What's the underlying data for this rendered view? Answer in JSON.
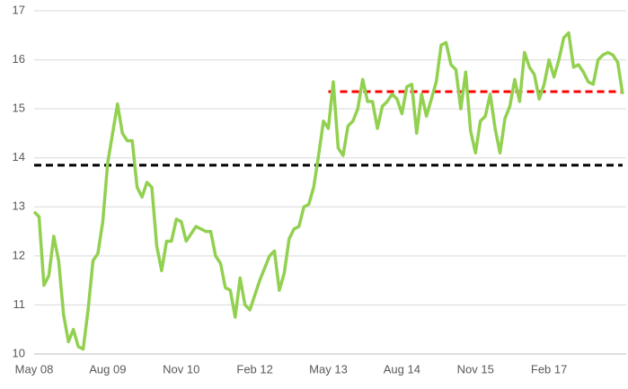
{
  "chart_data": {
    "type": "line",
    "categories": [
      "May 08",
      null,
      null,
      null,
      null,
      null,
      null,
      null,
      null,
      null,
      null,
      null,
      null,
      null,
      null,
      "Aug 09",
      null,
      null,
      null,
      null,
      null,
      null,
      null,
      null,
      null,
      null,
      null,
      null,
      null,
      null,
      "Nov 10",
      null,
      null,
      null,
      null,
      null,
      null,
      null,
      null,
      null,
      null,
      null,
      null,
      null,
      null,
      "Feb 12",
      null,
      null,
      null,
      null,
      null,
      null,
      null,
      null,
      null,
      null,
      null,
      null,
      null,
      null,
      "May 13",
      null,
      null,
      null,
      null,
      null,
      null,
      null,
      null,
      null,
      null,
      null,
      null,
      null,
      null,
      "Aug 14",
      null,
      null,
      null,
      null,
      null,
      null,
      null,
      null,
      null,
      null,
      null,
      null,
      null,
      null,
      "Nov 15",
      null,
      null,
      null,
      null,
      null,
      null,
      null,
      null,
      null,
      null,
      null,
      null,
      null,
      null,
      "Feb 17",
      null,
      null,
      null,
      null,
      null,
      null,
      null,
      null,
      null,
      null,
      null,
      null,
      null,
      null,
      null
    ],
    "values": [
      12.9,
      12.8,
      11.4,
      11.6,
      12.4,
      11.9,
      10.8,
      10.25,
      10.5,
      10.15,
      10.1,
      10.9,
      11.9,
      12.05,
      12.7,
      13.9,
      14.5,
      15.1,
      14.5,
      14.35,
      14.35,
      13.4,
      13.2,
      13.5,
      13.4,
      12.2,
      11.7,
      12.3,
      12.3,
      12.75,
      12.7,
      12.3,
      12.45,
      12.6,
      12.55,
      12.5,
      12.5,
      12.0,
      11.85,
      11.35,
      11.3,
      10.75,
      11.55,
      11.0,
      10.9,
      11.2,
      11.5,
      11.75,
      12.0,
      12.1,
      11.3,
      11.65,
      12.35,
      12.55,
      12.6,
      13.0,
      13.05,
      13.4,
      14.05,
      14.75,
      14.6,
      15.55,
      14.2,
      14.05,
      14.65,
      14.75,
      15.0,
      15.6,
      15.15,
      15.15,
      14.6,
      15.05,
      15.15,
      15.3,
      15.2,
      14.9,
      15.45,
      15.5,
      14.5,
      15.3,
      14.85,
      15.2,
      15.55,
      16.3,
      16.35,
      15.9,
      15.8,
      15.0,
      15.75,
      14.55,
      14.1,
      14.75,
      14.85,
      15.3,
      14.6,
      14.1,
      14.8,
      15.05,
      15.6,
      15.15,
      16.15,
      15.85,
      15.7,
      15.2,
      15.5,
      16.0,
      15.65,
      16.0,
      16.45,
      16.55,
      15.85,
      15.9,
      15.75,
      15.55,
      15.5,
      16.0,
      16.1,
      16.15,
      16.1,
      15.95,
      15.3
    ],
    "color": "#92d050",
    "reference_lines": [
      {
        "value": 13.85,
        "color": "#000000"
      },
      {
        "value": 15.35,
        "color": "#ff0000",
        "start": "May 13"
      }
    ],
    "ylim": [
      10,
      17
    ],
    "yticks": [
      10,
      11,
      12,
      13,
      14,
      15,
      16,
      17
    ],
    "grid": true
  }
}
